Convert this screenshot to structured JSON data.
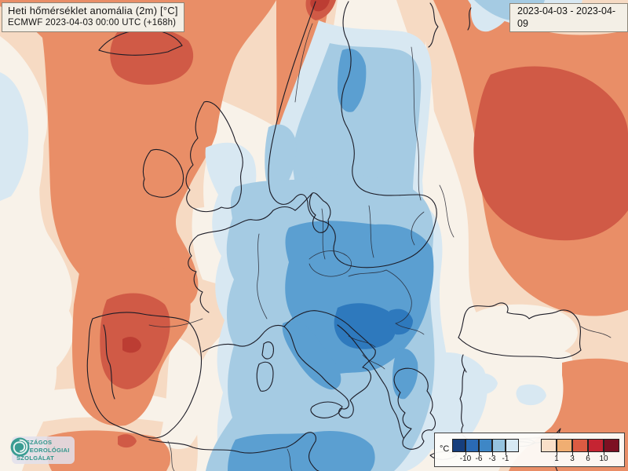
{
  "header": {
    "title_line1": "Heti hőmérséklet anomália (2m) [°C]",
    "title_line2": "ECMWF 2023-04-03 00:00 UTC (+168h)",
    "date_range": "2023-04-03 - 2023-04-09"
  },
  "legend": {
    "unit_label": "°C",
    "cold_colors": [
      "#163E7D",
      "#2A6AB4",
      "#3E87C6",
      "#95C3DF",
      "#D7E9F4"
    ],
    "warm_colors": [
      "#F9DFC8",
      "#F0AE72",
      "#DC5B42",
      "#C52432",
      "#7D1022"
    ],
    "cold_tick_labels": [
      "-10",
      "-6",
      "-3",
      "-1"
    ],
    "warm_tick_labels": [
      "1",
      "3",
      "6",
      "10"
    ]
  },
  "logo": {
    "line1": "ORSZÁGOS",
    "line2": "METEOROLÓGIAI",
    "line3": "SZOLGÁLAT",
    "brand_color": "#2F958B",
    "icon": "spiral-cyclone-icon"
  },
  "map_palette": {
    "neutral": "#F8F2E9",
    "peach": "#F6DAC3",
    "orange": "#E98E67",
    "dark_orange": "#D05A46",
    "red": "#BC3D33",
    "pale_blue": "#D8E8F2",
    "light_blue": "#A5CBE3",
    "medium_blue": "#5B9FD1",
    "dark_blue": "#2E79BD",
    "coast": "#1B1B26",
    "border": "#23232E"
  }
}
